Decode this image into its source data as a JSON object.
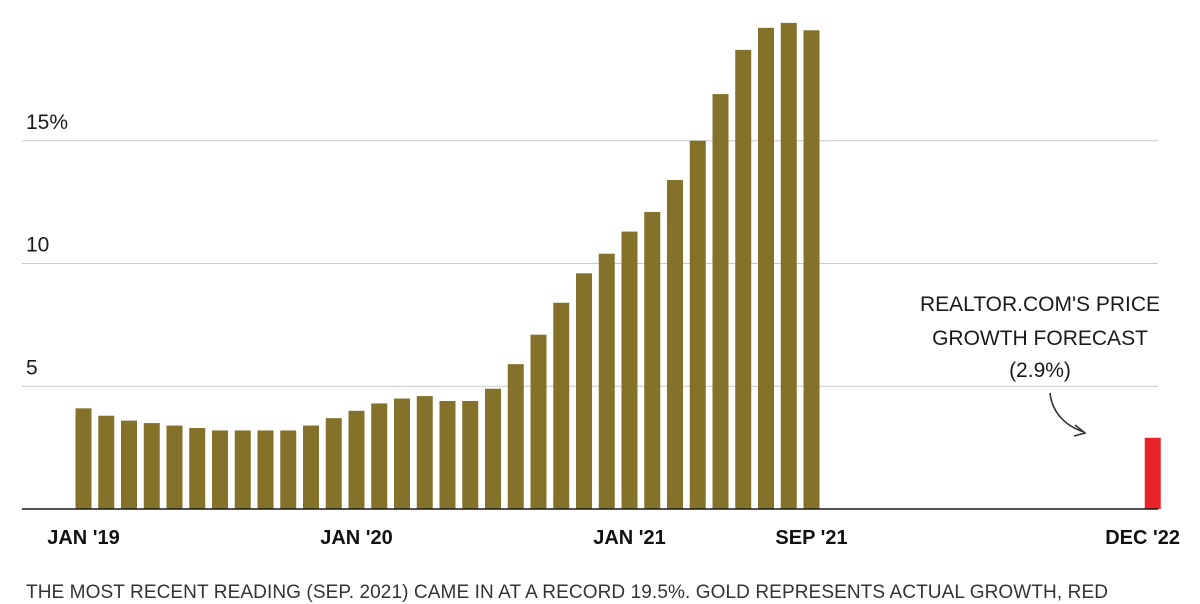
{
  "header_text": "",
  "footnote": "THE MOST RECENT READING (SEP. 2021) CAME IN AT A RECORD 19.5%. GOLD REPRESENTS ACTUAL GROWTH, RED",
  "colors": {
    "actual": "#85722A",
    "forecast": "#E8232A",
    "grid": "#c8c8c8",
    "axis": "#1a1a1a"
  },
  "chart_data": {
    "type": "bar",
    "ylim": [
      0,
      20
    ],
    "yticks": [
      {
        "value": 5,
        "label": "5"
      },
      {
        "value": 10,
        "label": "10"
      },
      {
        "value": 15,
        "label": "15%"
      }
    ],
    "xticks": [
      {
        "label": "JAN '19",
        "index": 0
      },
      {
        "label": "JAN '20",
        "index": 12
      },
      {
        "label": "JAN '21",
        "index": 24
      },
      {
        "label": "SEP '21",
        "index": 32
      },
      {
        "label": "DEC '22",
        "index": 47
      }
    ],
    "series": [
      {
        "values": [
          4.1,
          3.8,
          3.6,
          3.5,
          3.4,
          3.3,
          3.2,
          3.2,
          3.2,
          3.2,
          3.4,
          3.7,
          4.0,
          4.3,
          4.5,
          4.6,
          4.4,
          4.4,
          4.9,
          5.9,
          7.1,
          8.4,
          9.6,
          10.4,
          11.3,
          12.1,
          13.4,
          15.0,
          16.9,
          18.7,
          19.6,
          19.8,
          19.5
        ],
        "start_index": 0
      },
      {
        "values": [
          2.9
        ],
        "start_index": 47
      }
    ],
    "annotation": {
      "lines": [
        "REALTOR.COM'S PRICE",
        "GROWTH FORECAST",
        "(2.9%)"
      ]
    }
  }
}
